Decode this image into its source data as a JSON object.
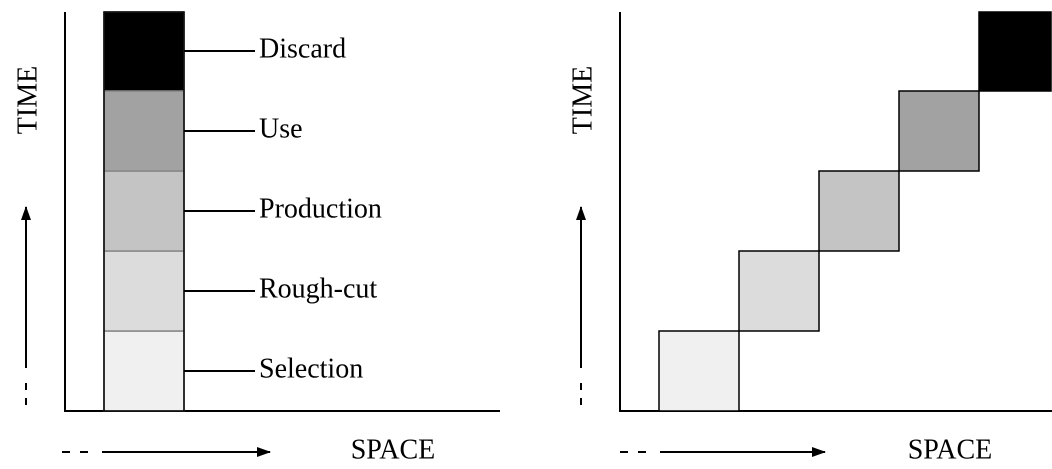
{
  "left_panel": {
    "y_label": "TIME",
    "x_label": "SPACE"
  },
  "right_panel": {
    "y_label": "TIME",
    "x_label": "SPACE"
  },
  "stages": [
    {
      "label": "Selection",
      "color": "#f0f0f0"
    },
    {
      "label": "Rough-cut",
      "color": "#dcdcdc"
    },
    {
      "label": "Production",
      "color": "#c4c4c4"
    },
    {
      "label": "Use",
      "color": "#a2a2a2"
    },
    {
      "label": "Discard",
      "color": "#000000"
    }
  ]
}
